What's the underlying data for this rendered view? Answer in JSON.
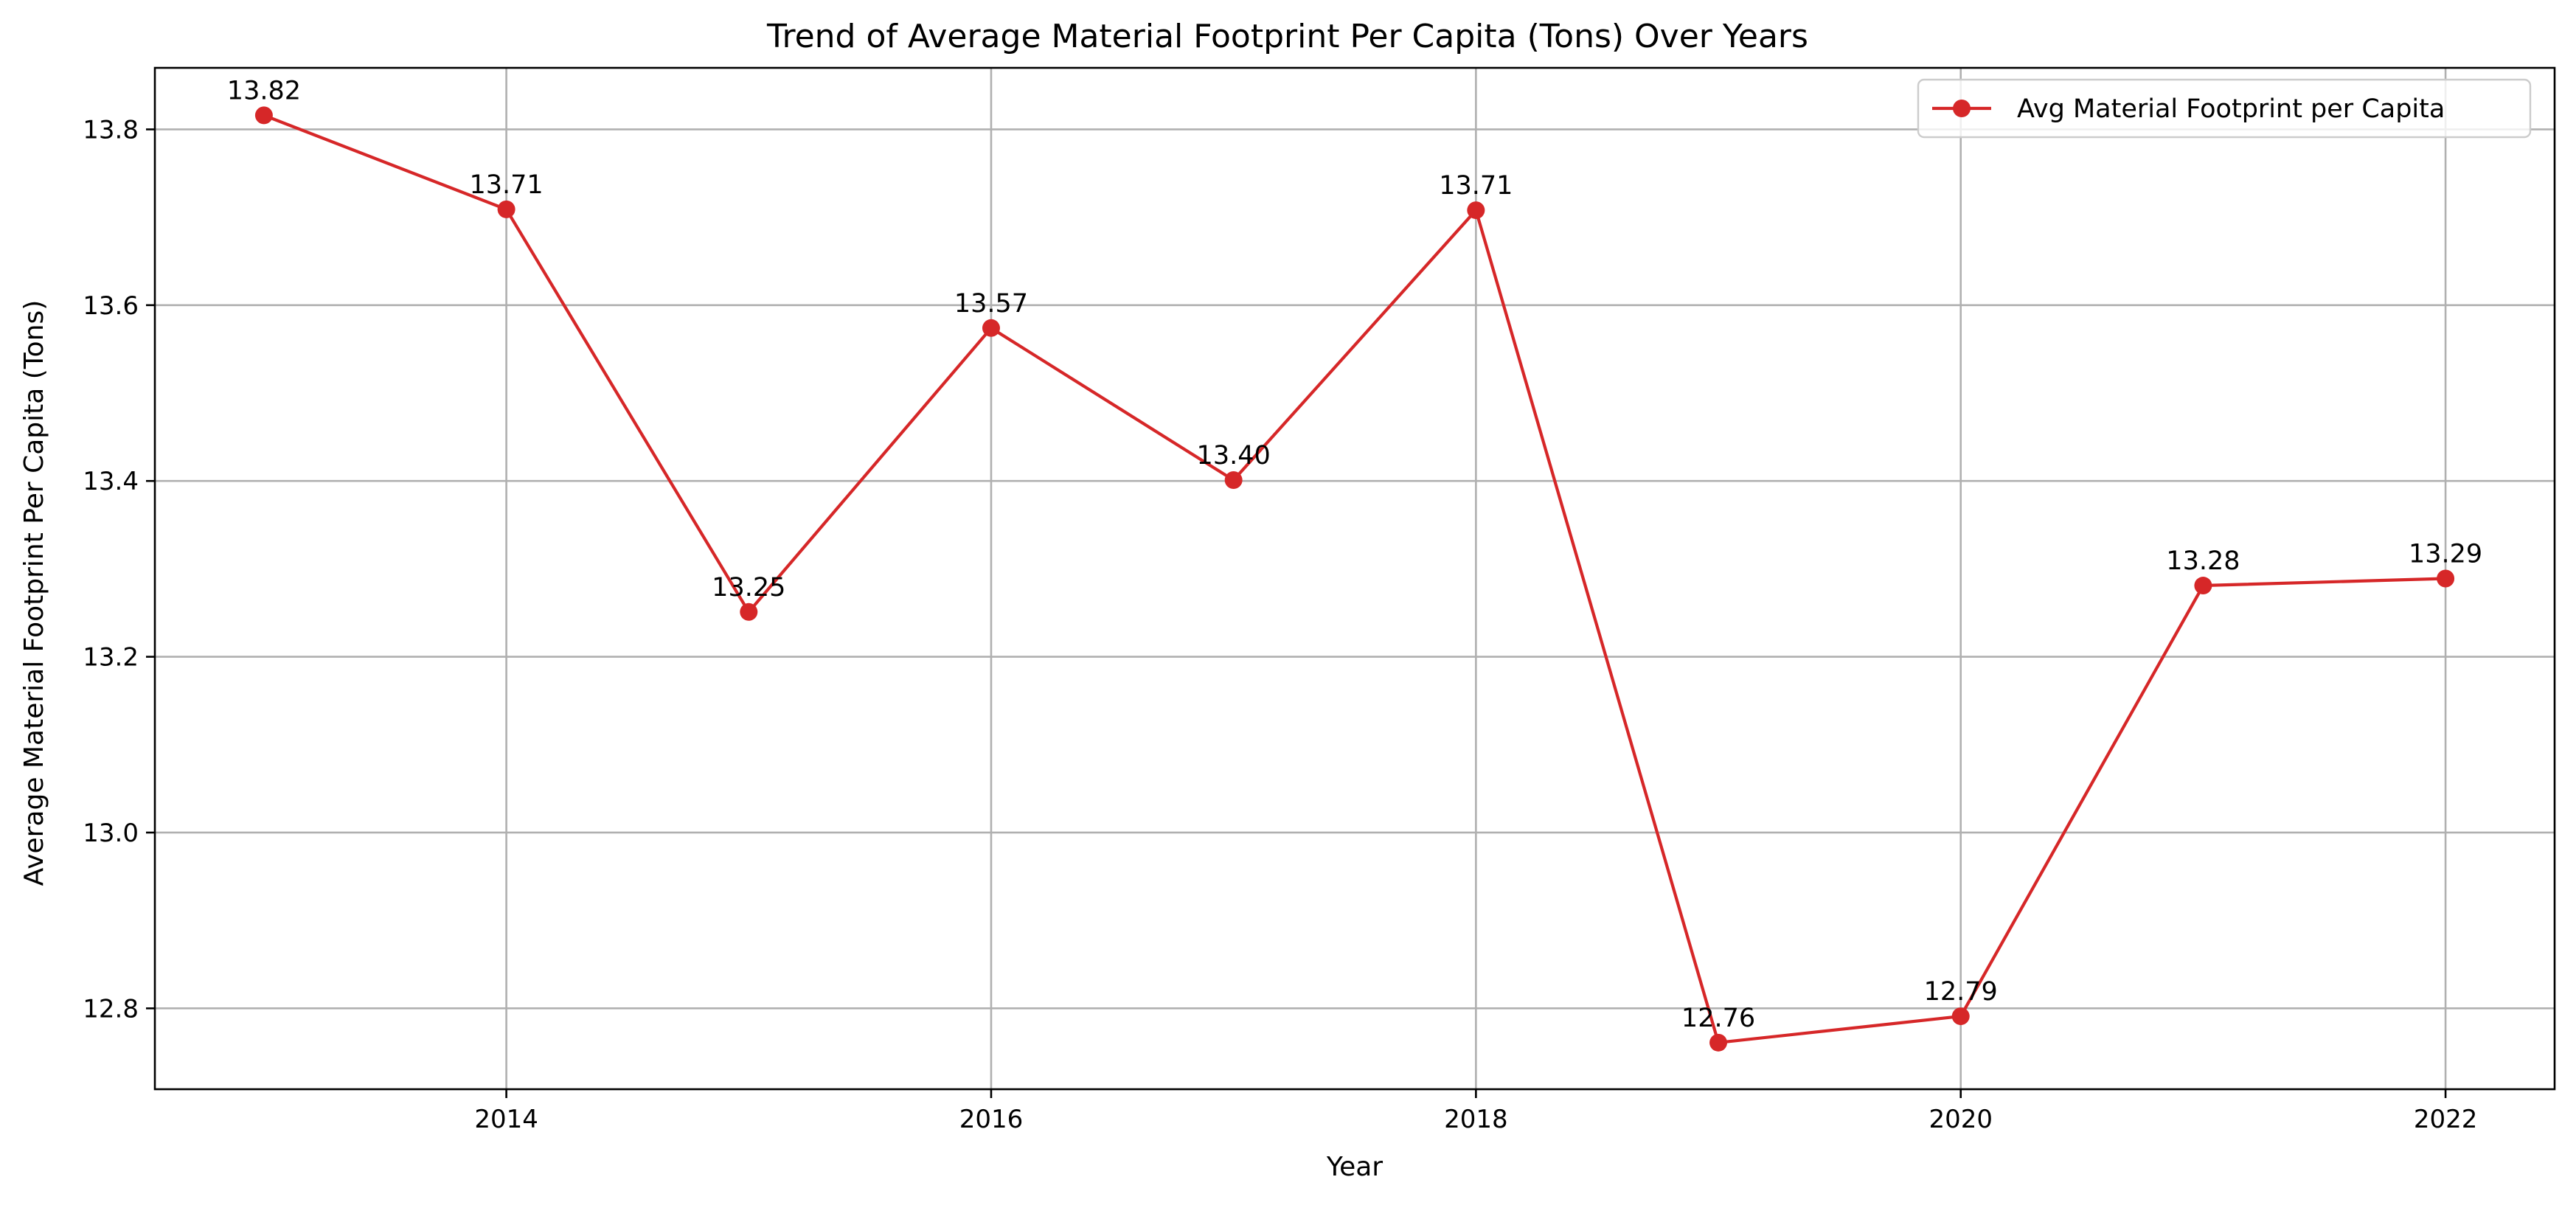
{
  "chart_data": {
    "type": "line",
    "title": "Trend of Average Material Footprint Per Capita (Tons) Over Years",
    "xlabel": "Year",
    "ylabel": "Average Material Footprint Per Capita (Tons)",
    "x": [
      2013,
      2014,
      2015,
      2016,
      2017,
      2018,
      2019,
      2020,
      2021,
      2022
    ],
    "xlim": [
      2012.55,
      2022.45
    ],
    "ylim": [
      12.708,
      13.87
    ],
    "xticks": [
      2014,
      2016,
      2018,
      2020,
      2022
    ],
    "yticks": [
      12.8,
      13.0,
      13.2,
      13.4,
      13.6,
      13.8
    ],
    "xtick_labels": [
      "2014",
      "2016",
      "2018",
      "2020",
      "2022"
    ],
    "ytick_labels": [
      "12.8",
      "13.0",
      "13.2",
      "13.4",
      "13.6",
      "13.8"
    ],
    "grid": true,
    "legend_position": "top-right",
    "series": [
      {
        "name": "Avg Material Footprint per Capita",
        "color": "#d62728",
        "marker": "circle",
        "values": [
          13.816,
          13.709,
          13.251,
          13.574,
          13.401,
          13.708,
          12.761,
          12.791,
          13.281,
          13.289
        ],
        "labels": [
          "13.82",
          "13.71",
          "13.25",
          "13.57",
          "13.40",
          "13.71",
          "12.76",
          "12.79",
          "13.28",
          "13.29"
        ]
      }
    ]
  }
}
